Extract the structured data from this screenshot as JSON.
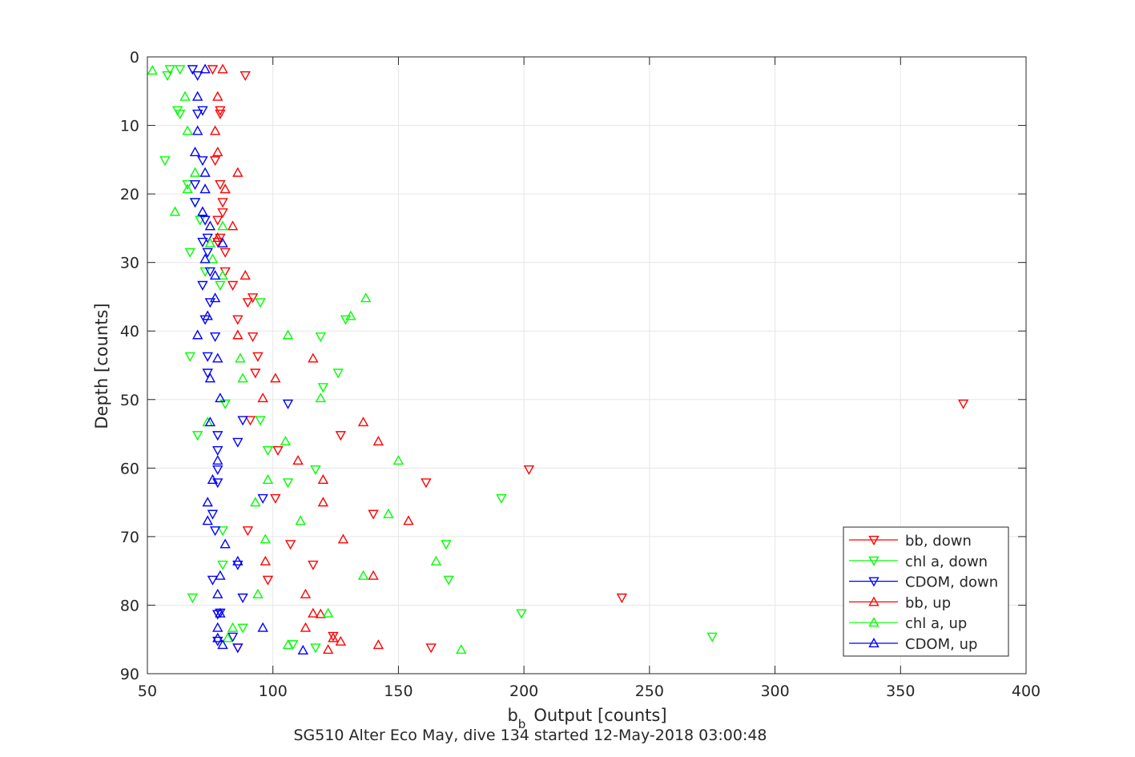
{
  "chart_data": {
    "type": "scatter",
    "title": "",
    "xlabel": "Output [counts]",
    "xlabel_base": "b",
    "xlabel_sub": "b",
    "ylabel": "Depth [counts]",
    "caption": "SG510 Alter Eco May, dive 134 started 12-May-2018 03:00:48",
    "xlim": [
      50,
      400
    ],
    "ylim": [
      0,
      90
    ],
    "y_reversed": true,
    "grid": true,
    "legend_position": "bottom-right",
    "x_ticks": [
      50,
      100,
      150,
      200,
      250,
      300,
      350,
      400
    ],
    "y_ticks": [
      0,
      10,
      20,
      30,
      40,
      50,
      60,
      70,
      80,
      90
    ],
    "series": [
      {
        "name": "bb, down",
        "color": "#ff0000",
        "marker": "triangle-down",
        "points": [
          [
            76,
            1.8
          ],
          [
            89,
            2.7
          ],
          [
            79,
            7.8
          ],
          [
            79,
            8.3
          ],
          [
            77,
            15.1
          ],
          [
            79,
            18.6
          ],
          [
            80,
            21.2
          ],
          [
            80,
            22.7
          ],
          [
            78,
            23.8
          ],
          [
            79,
            26.4
          ],
          [
            78,
            27
          ],
          [
            81,
            28.5
          ],
          [
            81,
            31.3
          ],
          [
            84,
            33.3
          ],
          [
            92,
            35.1
          ],
          [
            90,
            35.8
          ],
          [
            86,
            38.3
          ],
          [
            92,
            40.8
          ],
          [
            94,
            43.7
          ],
          [
            93,
            46.1
          ],
          [
            375,
            50.6
          ],
          [
            91,
            53
          ],
          [
            127,
            55.2
          ],
          [
            102,
            57.4
          ],
          [
            202,
            60.2
          ],
          [
            161,
            62.1
          ],
          [
            101,
            64.4
          ],
          [
            140,
            66.7
          ],
          [
            90,
            69.1
          ],
          [
            107,
            71.1
          ],
          [
            116,
            74.1
          ],
          [
            98,
            76.3
          ],
          [
            239,
            78.9
          ],
          [
            124,
            84.5
          ],
          [
            163,
            86.2
          ],
          [
            86,
            86.2
          ],
          [
            78,
            81.3
          ]
        ]
      },
      {
        "name": "chl a, down",
        "color": "#00ff00",
        "marker": "triangle-down",
        "points": [
          [
            59,
            1.8
          ],
          [
            63,
            1.8
          ],
          [
            58,
            2.7
          ],
          [
            62,
            7.8
          ],
          [
            63,
            8.3
          ],
          [
            57,
            15.1
          ],
          [
            66,
            18.6
          ],
          [
            69,
            21.2
          ],
          [
            71,
            23.8
          ],
          [
            67,
            28.5
          ],
          [
            73,
            31.3
          ],
          [
            79,
            33.3
          ],
          [
            95,
            35.8
          ],
          [
            129,
            38.3
          ],
          [
            119,
            40.8
          ],
          [
            67,
            43.7
          ],
          [
            126,
            46.1
          ],
          [
            120,
            48.2
          ],
          [
            81,
            50.6
          ],
          [
            95,
            53
          ],
          [
            70,
            55.2
          ],
          [
            98,
            57.4
          ],
          [
            117,
            60.2
          ],
          [
            106,
            62.1
          ],
          [
            191,
            64.4
          ],
          [
            80,
            69.1
          ],
          [
            169,
            71.1
          ],
          [
            80,
            74.1
          ],
          [
            170,
            76.3
          ],
          [
            68,
            78.9
          ],
          [
            199,
            81.2
          ],
          [
            88,
            83.3
          ],
          [
            275,
            84.6
          ],
          [
            108,
            85.7
          ],
          [
            117,
            86.2
          ]
        ]
      },
      {
        "name": "CDOM, down",
        "color": "#0000ff",
        "marker": "triangle-down",
        "points": [
          [
            68,
            1.8
          ],
          [
            70,
            2.7
          ],
          [
            72,
            7.8
          ],
          [
            70,
            8.3
          ],
          [
            72,
            15.1
          ],
          [
            69,
            18.6
          ],
          [
            69,
            21.2
          ],
          [
            73,
            23.8
          ],
          [
            74,
            26.4
          ],
          [
            72,
            27
          ],
          [
            74,
            28.5
          ],
          [
            75,
            31.3
          ],
          [
            72,
            33.3
          ],
          [
            75,
            35.8
          ],
          [
            73,
            38.3
          ],
          [
            77,
            40.8
          ],
          [
            74,
            43.7
          ],
          [
            74,
            46.1
          ],
          [
            106,
            50.6
          ],
          [
            88,
            53
          ],
          [
            78,
            55.2
          ],
          [
            86,
            56.2
          ],
          [
            78,
            57.4
          ],
          [
            78,
            60.2
          ],
          [
            78,
            62.1
          ],
          [
            96,
            64.4
          ],
          [
            76,
            66.7
          ],
          [
            77,
            69.1
          ],
          [
            86,
            74.1
          ],
          [
            76,
            76.3
          ],
          [
            88,
            78.9
          ],
          [
            78,
            81.3
          ],
          [
            79,
            81.1
          ],
          [
            84,
            84.6
          ],
          [
            78,
            85.2
          ],
          [
            86,
            86.2
          ]
        ]
      },
      {
        "name": "bb, up",
        "color": "#ff0000",
        "marker": "triangle-up",
        "points": [
          [
            80,
            1.8
          ],
          [
            78,
            5.8
          ],
          [
            77,
            10.8
          ],
          [
            78,
            13.9
          ],
          [
            86,
            16.9
          ],
          [
            81,
            19.3
          ],
          [
            84,
            24.7
          ],
          [
            78,
            26.4
          ],
          [
            89,
            31.9
          ],
          [
            86,
            40.6
          ],
          [
            116,
            44
          ],
          [
            101,
            46.9
          ],
          [
            96,
            49.8
          ],
          [
            136,
            53.3
          ],
          [
            142,
            56.1
          ],
          [
            110,
            58.9
          ],
          [
            120,
            61.7
          ],
          [
            120,
            65
          ],
          [
            154,
            67.7
          ],
          [
            128,
            70.4
          ],
          [
            97,
            73.6
          ],
          [
            140,
            75.7
          ],
          [
            113,
            78.4
          ],
          [
            116,
            81.2
          ],
          [
            119,
            81.3
          ],
          [
            113,
            83.3
          ],
          [
            124,
            84.8
          ],
          [
            127,
            85.3
          ],
          [
            142,
            85.8
          ],
          [
            122,
            86.5
          ]
        ]
      },
      {
        "name": "chl a, up",
        "color": "#00ff00",
        "marker": "triangle-up",
        "points": [
          [
            52,
            2
          ],
          [
            65,
            5.8
          ],
          [
            66,
            10.8
          ],
          [
            69,
            16.9
          ],
          [
            66,
            19.3
          ],
          [
            61,
            22.6
          ],
          [
            80,
            24.7
          ],
          [
            75,
            27.2
          ],
          [
            76,
            29.5
          ],
          [
            80,
            31.9
          ],
          [
            137,
            35.2
          ],
          [
            131,
            37.8
          ],
          [
            106,
            40.6
          ],
          [
            87,
            44
          ],
          [
            88,
            46.9
          ],
          [
            119,
            49.8
          ],
          [
            74,
            53.3
          ],
          [
            105,
            56.1
          ],
          [
            150,
            58.9
          ],
          [
            98,
            61.7
          ],
          [
            93,
            65
          ],
          [
            146,
            66.7
          ],
          [
            111,
            67.7
          ],
          [
            97,
            70.4
          ],
          [
            165,
            73.6
          ],
          [
            136,
            75.7
          ],
          [
            94,
            78.4
          ],
          [
            122,
            81.2
          ],
          [
            84,
            83.3
          ],
          [
            82,
            84.8
          ],
          [
            106,
            85.8
          ],
          [
            175,
            86.5
          ]
        ]
      },
      {
        "name": "CDOM, up",
        "color": "#0000ff",
        "marker": "triangle-up",
        "points": [
          [
            73,
            1.8
          ],
          [
            70,
            5.8
          ],
          [
            70,
            10.8
          ],
          [
            69,
            13.9
          ],
          [
            73,
            16.9
          ],
          [
            73,
            19.3
          ],
          [
            72,
            22.6
          ],
          [
            75,
            24.7
          ],
          [
            80,
            27.2
          ],
          [
            73,
            29.5
          ],
          [
            77,
            31.9
          ],
          [
            77,
            35.2
          ],
          [
            74,
            37.8
          ],
          [
            70,
            40.6
          ],
          [
            78,
            44
          ],
          [
            75,
            46.9
          ],
          [
            79,
            49.8
          ],
          [
            75,
            53.3
          ],
          [
            78,
            58.9
          ],
          [
            76,
            61.7
          ],
          [
            74,
            65
          ],
          [
            74,
            67.7
          ],
          [
            81,
            71.1
          ],
          [
            86,
            73.6
          ],
          [
            79,
            75.7
          ],
          [
            78,
            78.4
          ],
          [
            79,
            81.2
          ],
          [
            78,
            83.3
          ],
          [
            96,
            83.3
          ],
          [
            78,
            84.8
          ],
          [
            80,
            85.8
          ],
          [
            112,
            86.6
          ]
        ]
      }
    ]
  }
}
